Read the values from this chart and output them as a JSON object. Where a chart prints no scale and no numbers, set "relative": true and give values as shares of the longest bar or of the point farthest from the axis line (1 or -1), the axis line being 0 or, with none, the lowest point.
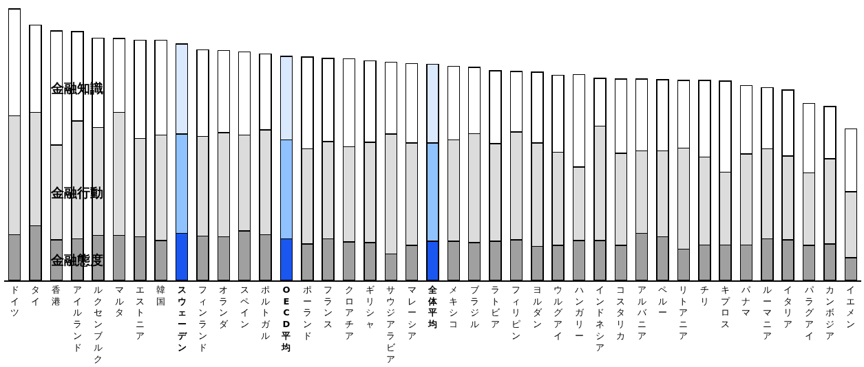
{
  "chart_data": {
    "type": "bar",
    "stacked": true,
    "relative": true,
    "legend": false,
    "categories": [
      "ドイツ",
      "タイ",
      "香港",
      "アイルランド",
      "ルクセンブルク",
      "マルタ",
      "エストニア",
      "韓国",
      "スウェーデン",
      "フィンランド",
      "オランダ",
      "スペイン",
      "ポルトガル",
      "OECD平均",
      "ポーランド",
      "フランス",
      "クロアチア",
      "ギリシャ",
      "サウジアラビア",
      "マレーシア",
      "全体平均",
      "メキシコ",
      "ブラジル",
      "ラトビア",
      "フィリピン",
      "ヨルダン",
      "ウルグアイ",
      "ハンガリー",
      "インドネシア",
      "コスタリカ",
      "アルバニア",
      "ペルー",
      "リトアニア",
      "チリ",
      "キプロス",
      "パナマ",
      "ルーマニア",
      "イタリア",
      "パラグアイ",
      "カンボジア",
      "イエメン"
    ],
    "series": [
      {
        "name": "金融態度",
        "colors": [
          "#a0a0a0",
          "#a0a0a0",
          "#a0a0a0",
          "#a0a0a0",
          "#a0a0a0",
          "#a0a0a0",
          "#a0a0a0",
          "#a0a0a0",
          "#1a56f0",
          "#a0a0a0",
          "#a0a0a0",
          "#a0a0a0",
          "#a0a0a0",
          "#1a56f0",
          "#a0a0a0",
          "#a0a0a0",
          "#a0a0a0",
          "#a0a0a0",
          "#a0a0a0",
          "#a0a0a0",
          "#1a56f0",
          "#a0a0a0",
          "#a0a0a0",
          "#a0a0a0",
          "#a0a0a0",
          "#a0a0a0",
          "#a0a0a0",
          "#a0a0a0",
          "#a0a0a0",
          "#a0a0a0",
          "#a0a0a0",
          "#a0a0a0",
          "#a0a0a0",
          "#a0a0a0",
          "#a0a0a0",
          "#a0a0a0",
          "#a0a0a0",
          "#a0a0a0",
          "#a0a0a0",
          "#a0a0a0",
          "#a0a0a0"
        ],
        "values": [
          0.169,
          0.201,
          0.15,
          0.153,
          0.166,
          0.166,
          0.161,
          0.147,
          0.174,
          0.164,
          0.161,
          0.182,
          0.169,
          0.153,
          0.134,
          0.153,
          0.142,
          0.139,
          0.097,
          0.129,
          0.145,
          0.145,
          0.139,
          0.145,
          0.15,
          0.126,
          0.129,
          0.147,
          0.147,
          0.129,
          0.174,
          0.161,
          0.115,
          0.131,
          0.131,
          0.131,
          0.153,
          0.15,
          0.129,
          0.134,
          0.083
        ]
      },
      {
        "name": "金融行動",
        "colors": [
          "#dcdcdc",
          "#dcdcdc",
          "#dcdcdc",
          "#dcdcdc",
          "#dcdcdc",
          "#dcdcdc",
          "#dcdcdc",
          "#dcdcdc",
          "#90c2ff",
          "#dcdcdc",
          "#dcdcdc",
          "#dcdcdc",
          "#dcdcdc",
          "#90c2ff",
          "#dcdcdc",
          "#dcdcdc",
          "#dcdcdc",
          "#dcdcdc",
          "#dcdcdc",
          "#dcdcdc",
          "#90c2ff",
          "#dcdcdc",
          "#dcdcdc",
          "#dcdcdc",
          "#dcdcdc",
          "#dcdcdc",
          "#dcdcdc",
          "#dcdcdc",
          "#dcdcdc",
          "#dcdcdc",
          "#dcdcdc",
          "#dcdcdc",
          "#dcdcdc",
          "#dcdcdc",
          "#dcdcdc",
          "#dcdcdc",
          "#dcdcdc",
          "#dcdcdc",
          "#dcdcdc",
          "#dcdcdc",
          "#dcdcdc"
        ],
        "values": [
          0.437,
          0.418,
          0.349,
          0.434,
          0.397,
          0.453,
          0.362,
          0.389,
          0.365,
          0.367,
          0.383,
          0.354,
          0.386,
          0.365,
          0.351,
          0.359,
          0.351,
          0.37,
          0.442,
          0.378,
          0.362,
          0.373,
          0.402,
          0.359,
          0.397,
          0.381,
          0.343,
          0.271,
          0.421,
          0.34,
          0.303,
          0.316,
          0.373,
          0.324,
          0.268,
          0.335,
          0.332,
          0.308,
          0.268,
          0.314,
          0.244
        ]
      },
      {
        "name": "金融知識",
        "colors": [
          "#ffffff",
          "#ffffff",
          "#ffffff",
          "#ffffff",
          "#ffffff",
          "#ffffff",
          "#ffffff",
          "#ffffff",
          "#dbe9ff",
          "#ffffff",
          "#ffffff",
          "#ffffff",
          "#ffffff",
          "#dbe9ff",
          "#ffffff",
          "#ffffff",
          "#ffffff",
          "#ffffff",
          "#ffffff",
          "#ffffff",
          "#dbe9ff",
          "#ffffff",
          "#ffffff",
          "#ffffff",
          "#ffffff",
          "#ffffff",
          "#ffffff",
          "#ffffff",
          "#ffffff",
          "#ffffff",
          "#ffffff",
          "#ffffff",
          "#ffffff",
          "#ffffff",
          "#ffffff",
          "#ffffff",
          "#ffffff",
          "#ffffff",
          "#ffffff",
          "#ffffff",
          "#ffffff"
        ],
        "values": [
          0.394,
          0.322,
          0.421,
          0.33,
          0.33,
          0.273,
          0.362,
          0.349,
          0.332,
          0.319,
          0.303,
          0.306,
          0.279,
          0.308,
          0.338,
          0.306,
          0.324,
          0.3,
          0.265,
          0.292,
          0.29,
          0.271,
          0.244,
          0.268,
          0.223,
          0.26,
          0.284,
          0.34,
          0.177,
          0.273,
          0.265,
          0.263,
          0.249,
          0.282,
          0.335,
          0.252,
          0.225,
          0.244,
          0.255,
          0.193,
          0.231
        ]
      }
    ]
  }
}
